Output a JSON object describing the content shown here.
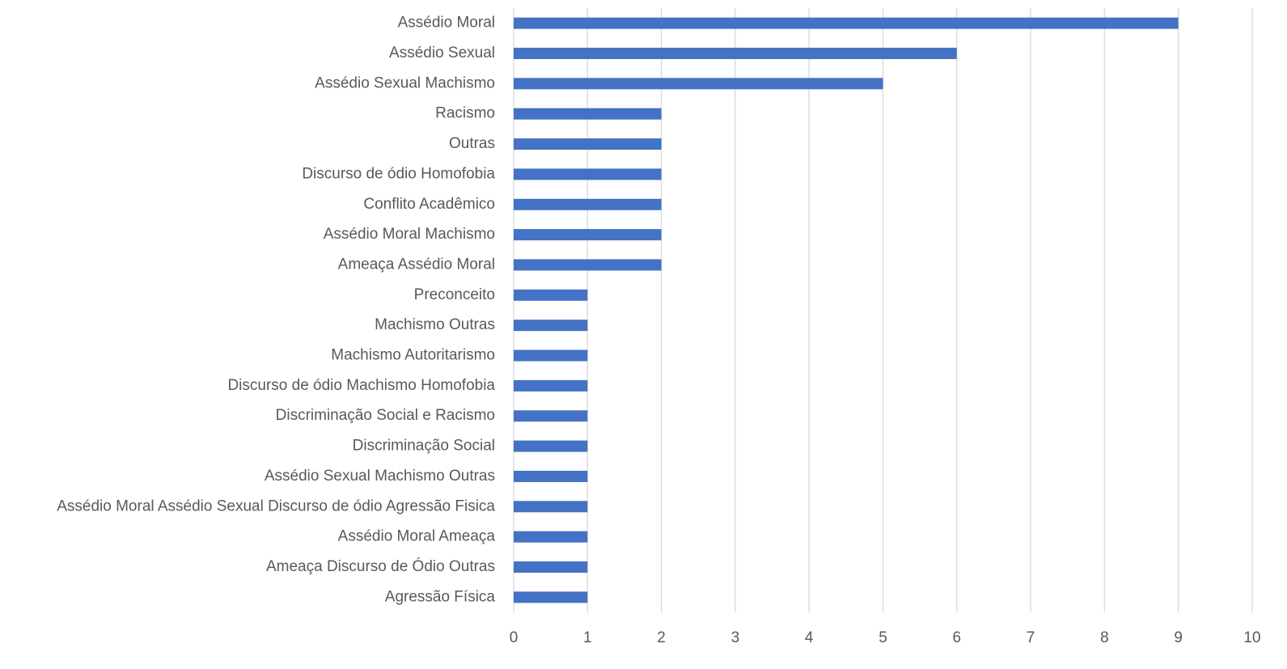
{
  "chart_data": {
    "type": "barh",
    "categories": [
      "Assédio Moral",
      "Assédio Sexual",
      "Assédio Sexual Machismo",
      "Racismo",
      "Outras",
      "Discurso de ódio Homofobia",
      "Conflito Acadêmico",
      "Assédio Moral Machismo",
      "Ameaça Assédio Moral",
      "Preconceito",
      "Machismo Outras",
      "Machismo Autoritarismo",
      "Discurso de ódio Machismo Homofobia",
      "Discriminação Social e Racismo",
      "Discriminação Social",
      "Assédio Sexual Machismo Outras",
      "Assédio Moral Assédio Sexual Discurso de ódio Agressão Fisica",
      "Assédio Moral Ameaça",
      "Ameaça Discurso de Ódio Outras",
      "Agressão Física"
    ],
    "values": [
      9,
      6,
      5,
      2,
      2,
      2,
      2,
      2,
      2,
      1,
      1,
      1,
      1,
      1,
      1,
      1,
      1,
      1,
      1,
      1
    ],
    "color": "#4472c4",
    "xlim": [
      0,
      10
    ],
    "xticks": [
      0,
      1,
      2,
      3,
      4,
      5,
      6,
      7,
      8,
      9,
      10
    ],
    "grid": true
  }
}
